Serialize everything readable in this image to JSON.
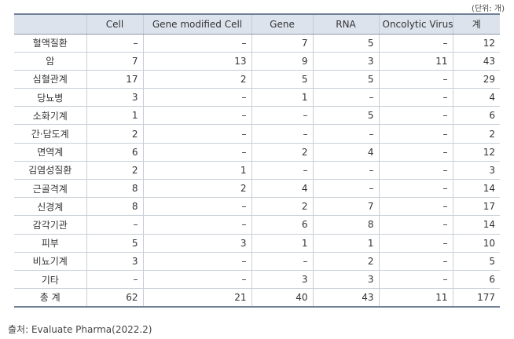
{
  "unit_label": "(단위: 개)",
  "table": {
    "headers": [
      "",
      "Cell",
      "Gene modified Cell",
      "Gene",
      "RNA",
      "Oncolytic Virus",
      "계"
    ],
    "rows": [
      {
        "label": "혈액질환",
        "cells": [
          "–",
          "–",
          "7",
          "5",
          "–",
          "12"
        ]
      },
      {
        "label": "암",
        "cells": [
          "7",
          "13",
          "9",
          "3",
          "11",
          "43"
        ]
      },
      {
        "label": "심혈관계",
        "cells": [
          "17",
          "2",
          "5",
          "5",
          "–",
          "29"
        ]
      },
      {
        "label": "당뇨병",
        "cells": [
          "3",
          "–",
          "1",
          "–",
          "–",
          "4"
        ]
      },
      {
        "label": "소화기계",
        "cells": [
          "1",
          "–",
          "–",
          "5",
          "–",
          "6"
        ]
      },
      {
        "label": "간·담도계",
        "cells": [
          "2",
          "–",
          "–",
          "–",
          "–",
          "2"
        ]
      },
      {
        "label": "면역계",
        "cells": [
          "6",
          "–",
          "2",
          "4",
          "–",
          "12"
        ]
      },
      {
        "label": "김염성질환",
        "cells": [
          "2",
          "1",
          "–",
          "–",
          "–",
          "3"
        ]
      },
      {
        "label": "근골격계",
        "cells": [
          "8",
          "2",
          "4",
          "–",
          "–",
          "14"
        ]
      },
      {
        "label": "신경계",
        "cells": [
          "8",
          "–",
          "2",
          "7",
          "–",
          "17"
        ]
      },
      {
        "label": "감각기관",
        "cells": [
          "–",
          "–",
          "6",
          "8",
          "–",
          "14"
        ]
      },
      {
        "label": "피부",
        "cells": [
          "5",
          "3",
          "1",
          "1",
          "–",
          "10"
        ]
      },
      {
        "label": "비뇨기계",
        "cells": [
          "3",
          "–",
          "–",
          "2",
          "–",
          "5"
        ]
      },
      {
        "label": "기타",
        "cells": [
          "–",
          "–",
          "3",
          "3",
          "–",
          "6"
        ]
      },
      {
        "label": "총 계",
        "cells": [
          "62",
          "21",
          "40",
          "43",
          "11",
          "177"
        ]
      }
    ]
  },
  "source": "출처: Evaluate Pharma(2022.2)"
}
